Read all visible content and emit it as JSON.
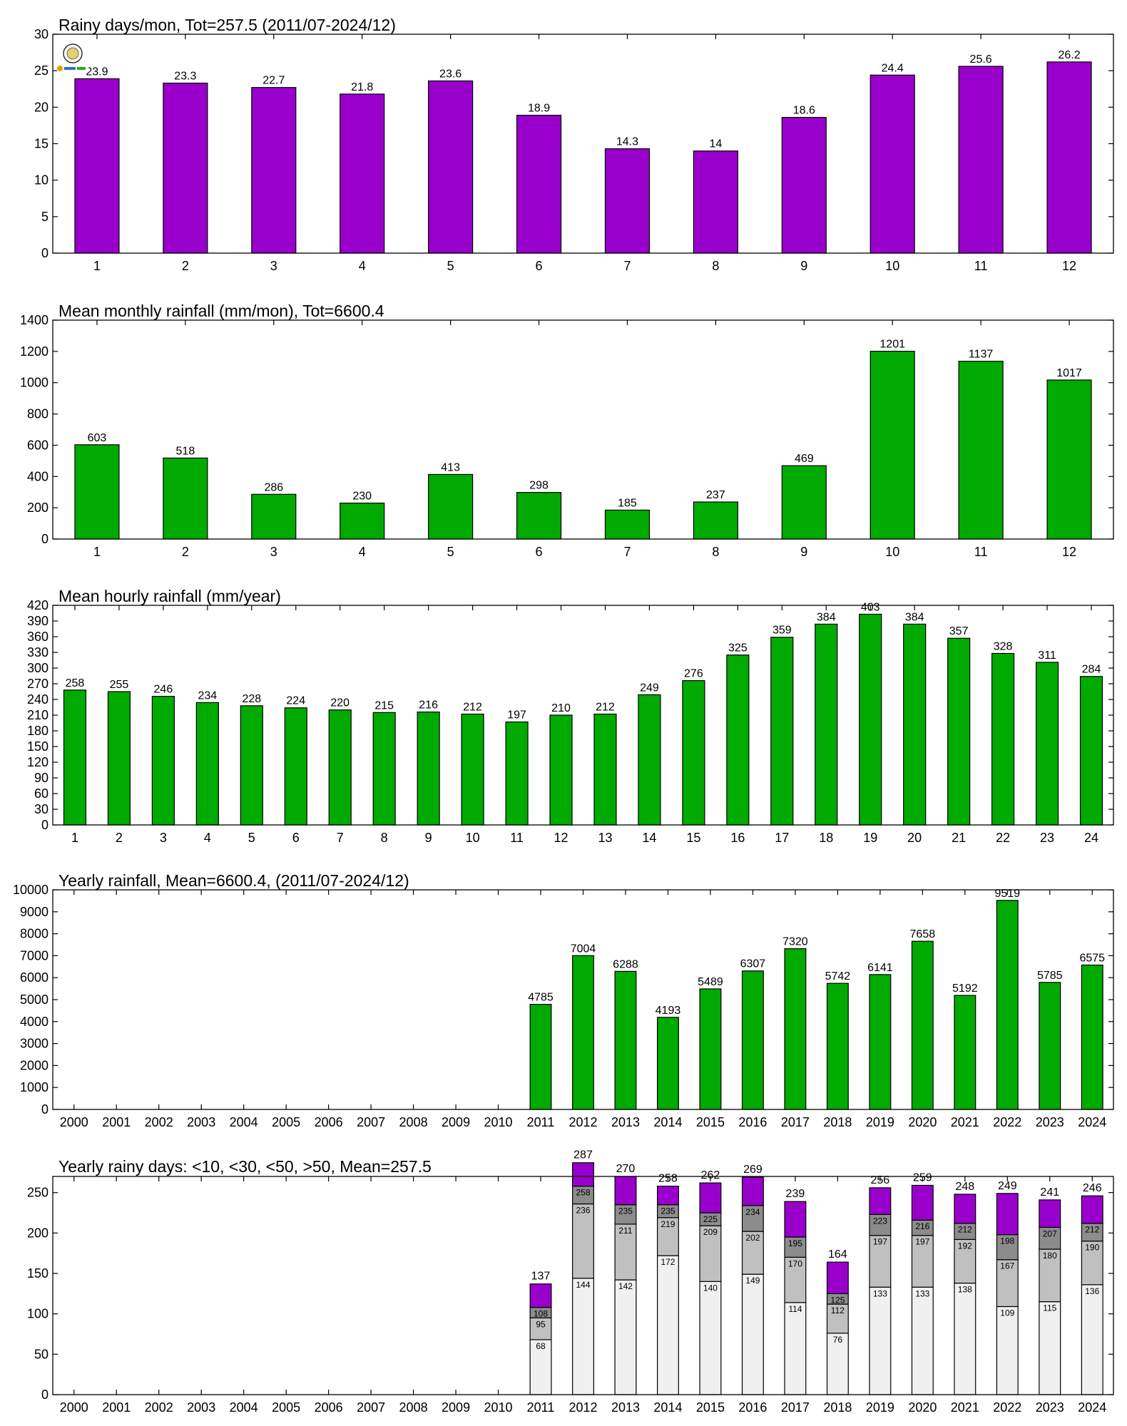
{
  "colors": {
    "purple": "#9900cc",
    "green": "#00aa00",
    "seg_lt10": "#f0f0f0",
    "seg_lt30": "#c0c0c0",
    "seg_lt50": "#8c8c8c"
  },
  "chart_data": [
    {
      "type": "bar",
      "title": "Rainy days/mon, Tot=257.5 (2011/07-2024/12)",
      "categories": [
        "1",
        "2",
        "3",
        "4",
        "5",
        "6",
        "7",
        "8",
        "9",
        "10",
        "11",
        "12"
      ],
      "values": [
        23.9,
        23.3,
        22.7,
        21.8,
        23.6,
        18.9,
        14.3,
        14,
        18.6,
        24.4,
        25.6,
        26.2
      ],
      "value_labels": [
        "23.9",
        "23.3",
        "22.7",
        "21.8",
        "23.6",
        "18.9",
        "14.3",
        "14",
        "18.6",
        "24.4",
        "25.6",
        "26.2"
      ],
      "ylim": [
        0,
        30
      ],
      "yticks": [
        0,
        5,
        10,
        15,
        20,
        25,
        30
      ],
      "color": "purple",
      "grid": false
    },
    {
      "type": "bar",
      "title": "Mean monthly rainfall (mm/mon), Tot=6600.4",
      "categories": [
        "1",
        "2",
        "3",
        "4",
        "5",
        "6",
        "7",
        "8",
        "9",
        "10",
        "11",
        "12"
      ],
      "values": [
        603,
        518,
        286,
        230,
        413,
        298,
        185,
        237,
        469,
        1201,
        1137,
        1017
      ],
      "value_labels": [
        "603",
        "518",
        "286",
        "230",
        "413",
        "298",
        "185",
        "237",
        "469",
        "1201",
        "1137",
        "1017"
      ],
      "ylim": [
        0,
        1400
      ],
      "yticks": [
        0,
        200,
        400,
        600,
        800,
        1000,
        1200,
        1400
      ],
      "color": "green",
      "grid": false
    },
    {
      "type": "bar",
      "title": "Mean hourly rainfall (mm/year)",
      "categories": [
        "1",
        "2",
        "3",
        "4",
        "5",
        "6",
        "7",
        "8",
        "9",
        "10",
        "11",
        "12",
        "13",
        "14",
        "15",
        "16",
        "17",
        "18",
        "19",
        "20",
        "21",
        "22",
        "23",
        "24"
      ],
      "values": [
        258,
        255,
        246,
        234,
        228,
        224,
        220,
        215,
        216,
        212,
        197,
        210,
        212,
        249,
        276,
        325,
        359,
        384,
        403,
        384,
        357,
        328,
        311,
        284
      ],
      "value_labels": [
        "258",
        "255",
        "246",
        "234",
        "228",
        "224",
        "220",
        "215",
        "216",
        "212",
        "197",
        "210",
        "212",
        "249",
        "276",
        "325",
        "359",
        "384",
        "403",
        "384",
        "357",
        "328",
        "311",
        "284"
      ],
      "ylim": [
        0,
        420
      ],
      "yticks": [
        0,
        30,
        60,
        90,
        120,
        150,
        180,
        210,
        240,
        270,
        300,
        330,
        360,
        390,
        420
      ],
      "color": "green",
      "grid": false
    },
    {
      "type": "bar",
      "title": "Yearly rainfall, Mean=6600.4, (2011/07-2024/12)",
      "categories": [
        "2000",
        "2001",
        "2002",
        "2003",
        "2004",
        "2005",
        "2006",
        "2007",
        "2008",
        "2009",
        "2010",
        "2011",
        "2012",
        "2013",
        "2014",
        "2015",
        "2016",
        "2017",
        "2018",
        "2019",
        "2020",
        "2021",
        "2022",
        "2023",
        "2024"
      ],
      "values": [
        null,
        null,
        null,
        null,
        null,
        null,
        null,
        null,
        null,
        null,
        null,
        4785,
        7004,
        6288,
        4193,
        5489,
        6307,
        7320,
        5742,
        6141,
        7658,
        5192,
        9519,
        5785,
        6575
      ],
      "value_labels": [
        "",
        "",
        "",
        "",
        "",
        "",
        "",
        "",
        "",
        "",
        "",
        "4785",
        "7004",
        "6288",
        "4193",
        "5489",
        "6307",
        "7320",
        "5742",
        "6141",
        "7658",
        "5192",
        "9519",
        "5785",
        "6575"
      ],
      "ylim": [
        0,
        10000
      ],
      "yticks": [
        0,
        1000,
        2000,
        3000,
        4000,
        5000,
        6000,
        7000,
        8000,
        9000,
        10000
      ],
      "color": "green",
      "grid": false
    },
    {
      "type": "bar",
      "stacked": true,
      "title": "Yearly rainy days: <10, <30, <50, >50, Mean=257.5",
      "categories": [
        "2000",
        "2001",
        "2002",
        "2003",
        "2004",
        "2005",
        "2006",
        "2007",
        "2008",
        "2009",
        "2010",
        "2011",
        "2012",
        "2013",
        "2014",
        "2015",
        "2016",
        "2017",
        "2018",
        "2019",
        "2020",
        "2021",
        "2022",
        "2023",
        "2024"
      ],
      "ylim": [
        0,
        270
      ],
      "yticks": [
        0,
        50,
        100,
        150,
        200,
        250
      ],
      "cumulative": {
        "lt10": [
          null,
          null,
          null,
          null,
          null,
          null,
          null,
          null,
          null,
          null,
          null,
          68,
          144,
          142,
          172,
          140,
          149,
          114,
          76,
          133,
          133,
          138,
          109,
          115,
          136
        ],
        "lt30": [
          null,
          null,
          null,
          null,
          null,
          null,
          null,
          null,
          null,
          null,
          null,
          95,
          236,
          211,
          219,
          209,
          202,
          170,
          112,
          197,
          197,
          192,
          167,
          180,
          190
        ],
        "lt50": [
          null,
          null,
          null,
          null,
          null,
          null,
          null,
          null,
          null,
          null,
          null,
          108,
          258,
          235,
          235,
          225,
          234,
          195,
          125,
          223,
          216,
          212,
          198,
          207,
          212
        ],
        "total": [
          null,
          null,
          null,
          null,
          null,
          null,
          null,
          null,
          null,
          null,
          null,
          137,
          287,
          270,
          258,
          262,
          269,
          239,
          164,
          256,
          259,
          248,
          249,
          241,
          246
        ]
      },
      "series_colors": [
        "seg_lt10",
        "seg_lt30",
        "seg_lt50",
        "purple"
      ],
      "grid": false
    }
  ]
}
